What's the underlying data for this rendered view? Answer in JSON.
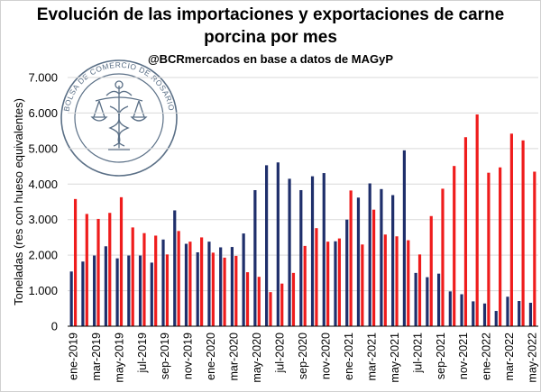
{
  "title_line1": "Evolución de las importaciones y exportaciones de carne",
  "title_line2": "porcina por mes",
  "subtitle": "@BCRmercados en base a datos de MAGyP",
  "seal": {
    "text": "BOLSA DE COMERCIO DE ROSARIO",
    "color": "#5a6f86"
  },
  "colors": {
    "imports": "#1f2f6b",
    "exports": "#ef1c1c"
  },
  "chart_data": {
    "type": "bar",
    "ylabel": "Toneladas (res con hueso equivalentes)",
    "ylim": [
      0,
      7000
    ],
    "yticks": [
      "0",
      "1.000",
      "2.000",
      "3.000",
      "4.000",
      "5.000",
      "6.000",
      "7.000"
    ],
    "grid": true,
    "legend": "none",
    "categories": [
      "ene-2019",
      "feb-2019",
      "mar-2019",
      "abr-2019",
      "may-2019",
      "jun-2019",
      "jul-2019",
      "ago-2019",
      "sep-2019",
      "oct-2019",
      "nov-2019",
      "dic-2019",
      "ene-2020",
      "feb-2020",
      "mar-2020",
      "abr-2020",
      "may-2020",
      "jun-2020",
      "jul-2020",
      "ago-2020",
      "sep-2020",
      "oct-2020",
      "nov-2020",
      "dic-2020",
      "ene-2021",
      "feb-2021",
      "mar-2021",
      "abr-2021",
      "may-2021",
      "jun-2021",
      "jul-2021",
      "ago-2021",
      "sep-2021",
      "oct-2021",
      "nov-2021",
      "dic-2021",
      "ene-2022",
      "feb-2022",
      "mar-2022",
      "abr-2022",
      "may-2022"
    ],
    "xtick_labels": [
      "ene-2019",
      "mar-2019",
      "may-2019",
      "jul-2019",
      "sep-2019",
      "nov-2019",
      "ene-2020",
      "mar-2020",
      "may-2020",
      "jul-2020",
      "sep-2020",
      "nov-2020",
      "ene-2021",
      "mar-2021",
      "may-2021",
      "jul-2021",
      "sep-2021",
      "nov-2021",
      "ene-2022",
      "mar-2022",
      "may-2022"
    ],
    "series": [
      {
        "color": "#1f2f6b",
        "values": [
          1540,
          1820,
          1990,
          2250,
          1910,
          1990,
          1990,
          1790,
          2440,
          3260,
          2320,
          2080,
          2380,
          2220,
          2230,
          2610,
          3830,
          4530,
          4610,
          4150,
          3830,
          4220,
          4310,
          2390,
          3000,
          3620,
          4020,
          3860,
          3690,
          4950,
          1500,
          1380,
          1480,
          980,
          900,
          700,
          640,
          430,
          830,
          710,
          660
        ]
      },
      {
        "color": "#ef1c1c",
        "values": [
          3580,
          3160,
          3020,
          3190,
          3630,
          2780,
          2620,
          2550,
          2020,
          2680,
          2380,
          2500,
          2070,
          1930,
          1980,
          1520,
          1390,
          960,
          1200,
          1500,
          2260,
          2760,
          2380,
          2470,
          3820,
          2300,
          3280,
          2580,
          2530,
          2420,
          2020,
          3100,
          3870,
          4510,
          5320,
          5960,
          4320,
          4470,
          5420,
          5230,
          4350
        ]
      }
    ]
  }
}
